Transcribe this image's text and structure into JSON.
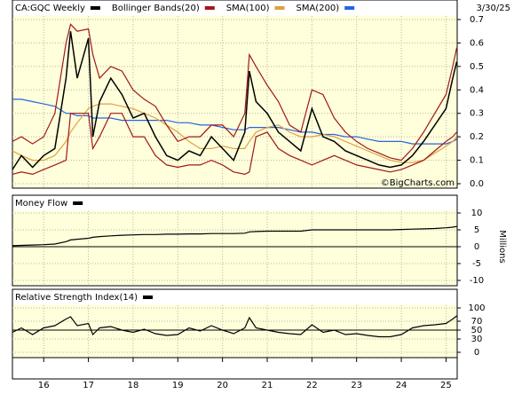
{
  "chart_data": {
    "type": "line",
    "date": "3/30/25",
    "watermark": "©BigCharts.com",
    "x": [
      2015.3,
      2015.5,
      2015.75,
      2016,
      2016.25,
      2016.5,
      2016.6,
      2016.75,
      2017,
      2017.1,
      2017.25,
      2017.5,
      2017.75,
      2018,
      2018.25,
      2018.5,
      2018.75,
      2019,
      2019.25,
      2019.5,
      2019.75,
      2020,
      2020.25,
      2020.5,
      2020.6,
      2020.75,
      2021,
      2021.25,
      2021.5,
      2021.75,
      2022,
      2022.25,
      2022.5,
      2022.75,
      2023,
      2023.25,
      2023.5,
      2023.75,
      2024,
      2024.25,
      2024.5,
      2024.75,
      2025,
      2025.15,
      2025.24
    ],
    "xlim": [
      2015.3,
      2025.25
    ],
    "xticks": [
      {
        "value": 2016,
        "label": "16"
      },
      {
        "value": 2017,
        "label": "17"
      },
      {
        "value": 2018,
        "label": "18"
      },
      {
        "value": 2019,
        "label": "19"
      },
      {
        "value": 2020,
        "label": "20"
      },
      {
        "value": 2021,
        "label": "21"
      },
      {
        "value": 2022,
        "label": "22"
      },
      {
        "value": 2023,
        "label": "23"
      },
      {
        "value": 2024,
        "label": "24"
      },
      {
        "value": 2025,
        "label": "25"
      }
    ],
    "grid": true,
    "panels": [
      {
        "ylim": [
          0,
          0.7
        ],
        "yticks": [
          {
            "value": 0,
            "label": "0.0"
          },
          0.1,
          0.2,
          0.3,
          0.4,
          0.5,
          0.6,
          0.7
        ],
        "series": [
          {
            "name": "CA:GQC Weekly",
            "color": "#000000",
            "values": [
              0.06,
              0.12,
              0.07,
              0.12,
              0.15,
              0.45,
              0.65,
              0.45,
              0.62,
              0.2,
              0.35,
              0.45,
              0.38,
              0.28,
              0.3,
              0.2,
              0.12,
              0.1,
              0.14,
              0.12,
              0.2,
              0.15,
              0.1,
              0.22,
              0.48,
              0.35,
              0.3,
              0.22,
              0.18,
              0.14,
              0.32,
              0.2,
              0.18,
              0.14,
              0.12,
              0.1,
              0.08,
              0.07,
              0.08,
              0.12,
              0.18,
              0.25,
              0.32,
              0.45,
              0.52
            ]
          },
          {
            "name": "Bollinger Bands(20)",
            "color": "#a01818",
            "values": [
              0.18,
              0.2,
              0.17,
              0.2,
              0.3,
              0.6,
              0.68,
              0.65,
              0.66,
              0.55,
              0.45,
              0.5,
              0.48,
              0.4,
              0.36,
              0.33,
              0.25,
              0.18,
              0.2,
              0.2,
              0.25,
              0.25,
              0.2,
              0.3,
              0.55,
              0.5,
              0.42,
              0.35,
              0.25,
              0.22,
              0.4,
              0.38,
              0.28,
              0.22,
              0.18,
              0.15,
              0.13,
              0.11,
              0.1,
              0.15,
              0.22,
              0.3,
              0.38,
              0.5,
              0.58
            ],
            "lower": [
              0.04,
              0.05,
              0.04,
              0.06,
              0.08,
              0.1,
              0.3,
              0.3,
              0.3,
              0.15,
              0.2,
              0.3,
              0.3,
              0.2,
              0.2,
              0.12,
              0.08,
              0.07,
              0.08,
              0.08,
              0.1,
              0.08,
              0.05,
              0.04,
              0.05,
              0.2,
              0.22,
              0.15,
              0.12,
              0.1,
              0.08,
              0.1,
              0.12,
              0.1,
              0.08,
              0.07,
              0.06,
              0.05,
              0.06,
              0.08,
              0.1,
              0.14,
              0.18,
              0.2,
              0.22
            ]
          },
          {
            "name": "SMA(100)",
            "color": "#e0a040",
            "values": [
              0.14,
              0.12,
              0.1,
              0.1,
              0.12,
              0.18,
              0.22,
              0.26,
              0.32,
              0.33,
              0.34,
              0.34,
              0.33,
              0.32,
              0.3,
              0.28,
              0.25,
              0.22,
              0.18,
              0.15,
              0.15,
              0.16,
              0.15,
              0.15,
              0.18,
              0.22,
              0.24,
              0.25,
              0.22,
              0.2,
              0.2,
              0.21,
              0.2,
              0.18,
              0.16,
              0.14,
              0.12,
              0.1,
              0.09,
              0.09,
              0.1,
              0.13,
              0.16,
              0.18,
              0.2
            ]
          },
          {
            "name": "SMA(200)",
            "color": "#2464e0",
            "values": [
              0.36,
              0.36,
              0.35,
              0.34,
              0.33,
              0.3,
              0.3,
              0.29,
              0.29,
              0.28,
              0.28,
              0.28,
              0.27,
              0.27,
              0.27,
              0.27,
              0.27,
              0.26,
              0.26,
              0.25,
              0.25,
              0.24,
              0.23,
              0.23,
              0.24,
              0.24,
              0.24,
              0.24,
              0.23,
              0.22,
              0.22,
              0.21,
              0.21,
              0.2,
              0.2,
              0.19,
              0.18,
              0.18,
              0.18,
              0.17,
              0.17,
              0.17,
              0.17,
              0.18,
              0.19
            ]
          }
        ]
      },
      {
        "ylim": [
          -10,
          10
        ],
        "yticks": [
          -10,
          -5,
          0,
          5,
          10
        ],
        "ylabel": "Millions",
        "series": [
          {
            "name": "Money Flow",
            "color": "#000000",
            "values": [
              0.3,
              0.4,
              0.5,
              0.6,
              0.8,
              1.5,
              2,
              2.2,
              2.5,
              2.8,
              3,
              3.2,
              3.4,
              3.5,
              3.6,
              3.6,
              3.7,
              3.7,
              3.8,
              3.8,
              3.9,
              3.9,
              3.9,
              4,
              4.4,
              4.5,
              4.6,
              4.6,
              4.6,
              4.6,
              5,
              5,
              5,
              5,
              5,
              5,
              5,
              5,
              5.1,
              5.2,
              5.3,
              5.4,
              5.6,
              5.8,
              6
            ]
          }
        ]
      },
      {
        "ylim": [
          0,
          100
        ],
        "yticks": [
          0,
          30,
          50,
          70,
          100
        ],
        "series": [
          {
            "name": "Relative Strength Index(14)",
            "color": "#000000",
            "values": [
              45,
              55,
              40,
              55,
              60,
              75,
              80,
              60,
              65,
              40,
              55,
              58,
              50,
              45,
              52,
              42,
              38,
              40,
              55,
              48,
              60,
              50,
              42,
              55,
              78,
              55,
              50,
              45,
              42,
              40,
              62,
              45,
              50,
              40,
              42,
              38,
              35,
              35,
              40,
              55,
              60,
              62,
              65,
              75,
              82
            ]
          }
        ]
      }
    ]
  }
}
